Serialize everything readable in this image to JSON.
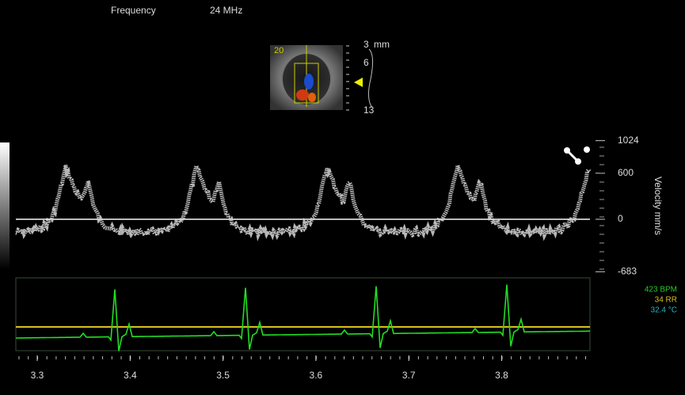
{
  "header": {
    "frequency_label": "Frequency",
    "frequency_value": "24 MHz"
  },
  "bmode": {
    "angle": "20",
    "depth_unit": "mm",
    "depth_labels": [
      "3",
      "6",
      "13"
    ]
  },
  "velocity_axis": {
    "label": "Velocity mm/s",
    "ticks": [
      1024,
      600,
      0,
      -683
    ]
  },
  "ecg": {
    "bpm": "423 BPM",
    "rr": "34 RR",
    "temp": "32.4 °C"
  },
  "time_axis": {
    "ticks": [
      3.3,
      3.4,
      3.5,
      3.6,
      3.7,
      3.8
    ]
  }
}
